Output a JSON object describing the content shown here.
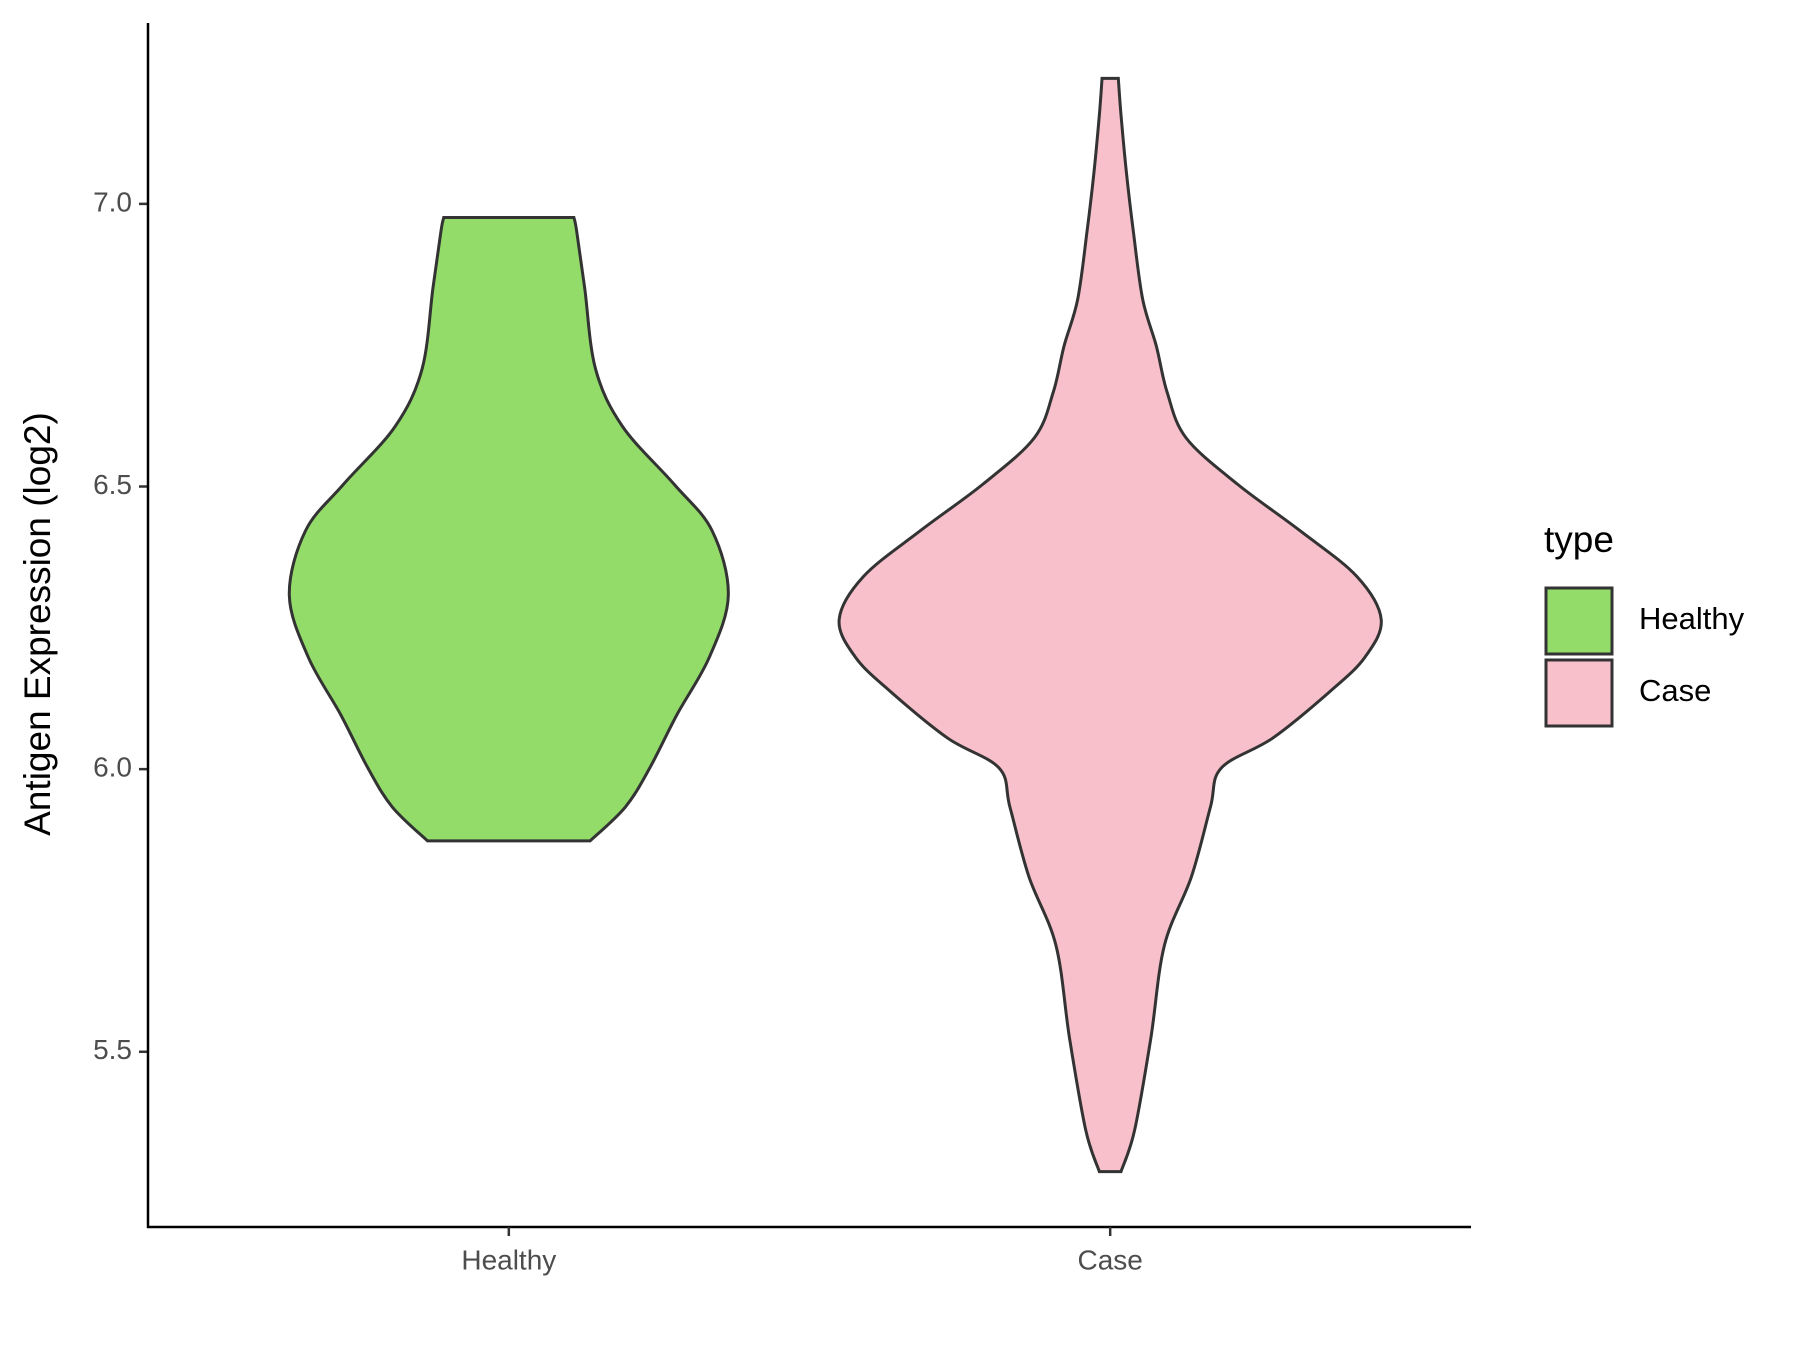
{
  "chart_data": {
    "type": "violin",
    "ylabel": "Antigen Expression (log2)",
    "legend_title": "type",
    "legend": "right",
    "categories": [
      "Healthy",
      "Case"
    ],
    "series": [
      {
        "name": "Healthy",
        "color": "#93dc6a",
        "y": [
          5.873,
          5.933,
          6.002,
          6.096,
          6.198,
          6.308,
          6.422,
          6.504,
          6.606,
          6.708,
          6.851,
          6.953,
          6.976
        ],
        "density": [
          0.3,
          0.43,
          0.52,
          0.62,
          0.74,
          0.81,
          0.75,
          0.61,
          0.42,
          0.32,
          0.28,
          0.25,
          0.24
        ]
      },
      {
        "name": "Case",
        "color": "#f7c0cb",
        "y": [
          5.288,
          5.361,
          5.524,
          5.688,
          5.81,
          5.933,
          6.002,
          6.055,
          6.137,
          6.198,
          6.265,
          6.341,
          6.422,
          6.504,
          6.586,
          6.667,
          6.749,
          6.831,
          6.953,
          7.055,
          7.157,
          7.222
        ],
        "density": [
          0.04,
          0.09,
          0.15,
          0.2,
          0.3,
          0.37,
          0.41,
          0.6,
          0.81,
          0.94,
          1.0,
          0.91,
          0.7,
          0.47,
          0.28,
          0.21,
          0.17,
          0.12,
          0.085,
          0.06,
          0.04,
          0.03
        ]
      }
    ],
    "ylim": [
      5.19,
      7.32
    ],
    "yticks": [
      5.5,
      {
        "value": 6,
        "label": "6.0"
      },
      6.5,
      {
        "value": 7,
        "label": "7.0"
      }
    ]
  }
}
